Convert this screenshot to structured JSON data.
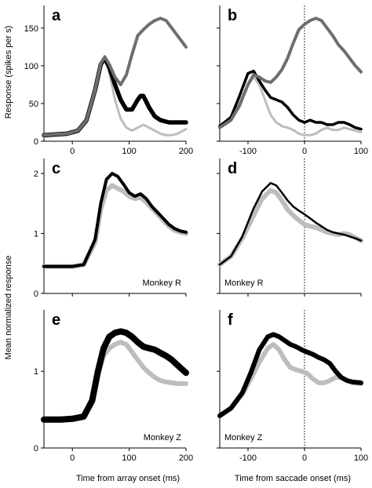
{
  "chart_data": [
    {
      "panel": "a",
      "type": "line",
      "xlim": [
        -50,
        200
      ],
      "ylim": [
        0,
        180
      ],
      "xticks": [
        0,
        100,
        200
      ],
      "xtick_labels": [
        "0",
        "100",
        "200"
      ],
      "yticks": [
        0,
        50,
        100,
        150
      ],
      "ytick_labels": [
        "0",
        "50",
        "100",
        "150"
      ],
      "label": "",
      "series": [
        {
          "color": "#bdbdbd",
          "width": 3,
          "x": [
            -50,
            -30,
            -10,
            10,
            25,
            40,
            50,
            57,
            65,
            75,
            85,
            95,
            105,
            115,
            125,
            135,
            145,
            155,
            165,
            175,
            185,
            200
          ],
          "y": [
            6,
            7,
            8,
            12,
            25,
            65,
            100,
            110,
            90,
            55,
            30,
            18,
            14,
            18,
            22,
            18,
            14,
            10,
            8,
            8,
            10,
            16
          ]
        },
        {
          "color": "#000000",
          "width": 5.5,
          "x": [
            -50,
            -30,
            -10,
            10,
            25,
            40,
            50,
            57,
            65,
            75,
            85,
            95,
            105,
            115,
            120,
            125,
            135,
            145,
            155,
            170,
            185,
            200
          ],
          "y": [
            8,
            9,
            10,
            14,
            28,
            68,
            102,
            110,
            98,
            75,
            55,
            42,
            42,
            55,
            60,
            60,
            45,
            33,
            28,
            25,
            25,
            25
          ]
        },
        {
          "color": "#6e6e6e",
          "width": 4,
          "x": [
            -50,
            -30,
            -10,
            10,
            25,
            40,
            50,
            57,
            65,
            75,
            85,
            95,
            105,
            115,
            125,
            135,
            145,
            155,
            165,
            175,
            185,
            195,
            200
          ],
          "y": [
            8,
            9,
            10,
            14,
            28,
            68,
            103,
            112,
            102,
            85,
            75,
            88,
            115,
            140,
            148,
            155,
            160,
            163,
            160,
            150,
            140,
            130,
            125
          ]
        }
      ]
    },
    {
      "panel": "b",
      "type": "line",
      "xlim": [
        -150,
        100
      ],
      "ylim": [
        0,
        180
      ],
      "xticks": [
        -100,
        0,
        100
      ],
      "xtick_labels": [
        "-100",
        "0",
        "100"
      ],
      "yticks": [
        0,
        50,
        100,
        150
      ],
      "ytick_labels": [],
      "saccade_line_x": 0,
      "label": "",
      "series": [
        {
          "color": "#bdbdbd",
          "width": 3,
          "x": [
            -150,
            -130,
            -115,
            -100,
            -90,
            -80,
            -70,
            -60,
            -50,
            -40,
            -30,
            -20,
            -10,
            0,
            10,
            20,
            30,
            40,
            50,
            60,
            70,
            80,
            90,
            100
          ],
          "y": [
            18,
            28,
            45,
            75,
            85,
            75,
            55,
            35,
            25,
            20,
            18,
            15,
            10,
            8,
            8,
            10,
            15,
            18,
            15,
            15,
            18,
            16,
            14,
            12
          ]
        },
        {
          "color": "#000000",
          "width": 3.5,
          "x": [
            -150,
            -130,
            -115,
            -100,
            -90,
            -80,
            -70,
            -60,
            -50,
            -40,
            -30,
            -20,
            -10,
            0,
            10,
            20,
            30,
            40,
            50,
            60,
            70,
            80,
            90,
            100
          ],
          "y": [
            20,
            32,
            60,
            90,
            93,
            80,
            68,
            58,
            55,
            52,
            45,
            35,
            28,
            25,
            28,
            25,
            25,
            22,
            22,
            25,
            25,
            22,
            18,
            16
          ]
        },
        {
          "color": "#6e6e6e",
          "width": 4,
          "x": [
            -150,
            -130,
            -115,
            -100,
            -90,
            -80,
            -70,
            -60,
            -50,
            -40,
            -30,
            -20,
            -10,
            0,
            10,
            20,
            30,
            40,
            50,
            60,
            70,
            80,
            90,
            100
          ],
          "y": [
            18,
            28,
            48,
            75,
            88,
            85,
            80,
            78,
            85,
            95,
            110,
            130,
            148,
            155,
            160,
            163,
            160,
            150,
            140,
            128,
            120,
            110,
            100,
            92
          ]
        }
      ]
    },
    {
      "panel": "c",
      "type": "line",
      "xlim": [
        -50,
        200
      ],
      "ylim": [
        0,
        2.25
      ],
      "xticks": [
        0,
        100,
        200
      ],
      "xtick_labels": [],
      "yticks": [
        0,
        1,
        2
      ],
      "ytick_labels": [
        "0",
        "1",
        "2"
      ],
      "label": "Monkey R",
      "series": [
        {
          "color": "#bdbdbd",
          "width": 6,
          "x": [
            -50,
            -20,
            0,
            20,
            40,
            50,
            60,
            70,
            80,
            90,
            100,
            110,
            120,
            130,
            140,
            150,
            160,
            170,
            180,
            190,
            200
          ],
          "y": [
            0.45,
            0.45,
            0.45,
            0.48,
            0.85,
            1.4,
            1.72,
            1.8,
            1.75,
            1.7,
            1.62,
            1.58,
            1.6,
            1.52,
            1.42,
            1.32,
            1.22,
            1.12,
            1.05,
            1.02,
            1.0
          ]
        },
        {
          "color": "#000000",
          "width": 4,
          "x": [
            -50,
            -20,
            0,
            20,
            40,
            50,
            60,
            70,
            80,
            90,
            100,
            110,
            120,
            130,
            140,
            150,
            160,
            170,
            180,
            190,
            200
          ],
          "y": [
            0.45,
            0.45,
            0.45,
            0.48,
            0.9,
            1.5,
            1.9,
            2.0,
            1.95,
            1.82,
            1.68,
            1.62,
            1.66,
            1.58,
            1.45,
            1.35,
            1.25,
            1.15,
            1.08,
            1.04,
            1.02
          ]
        }
      ]
    },
    {
      "panel": "d",
      "type": "line",
      "xlim": [
        -150,
        100
      ],
      "ylim": [
        0,
        2.25
      ],
      "xticks": [
        -100,
        0,
        100
      ],
      "xtick_labels": [],
      "yticks": [
        0,
        1,
        2
      ],
      "ytick_labels": [],
      "saccade_line_x": 0,
      "label": "Monkey R",
      "series": [
        {
          "color": "#bdbdbd",
          "width": 6,
          "x": [
            -150,
            -130,
            -110,
            -90,
            -75,
            -60,
            -50,
            -40,
            -30,
            -20,
            -10,
            0,
            10,
            20,
            30,
            40,
            50,
            60,
            70,
            80,
            90,
            100
          ],
          "y": [
            0.48,
            0.62,
            0.92,
            1.3,
            1.58,
            1.72,
            1.68,
            1.55,
            1.4,
            1.3,
            1.22,
            1.15,
            1.12,
            1.1,
            1.06,
            1.02,
            1.0,
            0.98,
            1.0,
            0.98,
            0.93,
            0.88
          ]
        },
        {
          "color": "#000000",
          "width": 2.5,
          "x": [
            -150,
            -130,
            -110,
            -90,
            -75,
            -60,
            -50,
            -40,
            -30,
            -20,
            -10,
            0,
            10,
            20,
            30,
            40,
            50,
            60,
            70,
            80,
            90,
            100
          ],
          "y": [
            0.48,
            0.62,
            0.95,
            1.42,
            1.7,
            1.84,
            1.8,
            1.68,
            1.55,
            1.45,
            1.38,
            1.32,
            1.25,
            1.18,
            1.12,
            1.06,
            1.02,
            1.0,
            0.98,
            0.95,
            0.92,
            0.88
          ]
        }
      ]
    },
    {
      "panel": "e",
      "type": "line",
      "xlim": [
        -50,
        200
      ],
      "ylim": [
        0,
        1.8
      ],
      "xticks": [
        0,
        100,
        200
      ],
      "xtick_labels": [
        "0",
        "100",
        "200"
      ],
      "yticks": [
        0,
        1
      ],
      "ytick_labels": [
        "0",
        "1"
      ],
      "label": "Monkey Z",
      "series": [
        {
          "color": "#bdbdbd",
          "width": 6,
          "x": [
            -50,
            -20,
            0,
            20,
            35,
            45,
            55,
            65,
            75,
            85,
            95,
            105,
            115,
            125,
            135,
            145,
            155,
            165,
            175,
            185,
            200
          ],
          "y": [
            0.36,
            0.36,
            0.37,
            0.4,
            0.6,
            0.95,
            1.2,
            1.3,
            1.35,
            1.38,
            1.35,
            1.25,
            1.15,
            1.05,
            0.98,
            0.92,
            0.88,
            0.86,
            0.85,
            0.84,
            0.84
          ]
        },
        {
          "color": "#000000",
          "width": 8,
          "x": [
            -50,
            -20,
            0,
            20,
            35,
            45,
            55,
            65,
            75,
            85,
            95,
            105,
            115,
            125,
            135,
            145,
            155,
            165,
            175,
            185,
            200
          ],
          "y": [
            0.37,
            0.37,
            0.38,
            0.41,
            0.62,
            1.0,
            1.3,
            1.45,
            1.5,
            1.52,
            1.5,
            1.45,
            1.38,
            1.32,
            1.3,
            1.28,
            1.24,
            1.2,
            1.15,
            1.08,
            0.98
          ]
        }
      ]
    },
    {
      "panel": "f",
      "type": "line",
      "xlim": [
        -150,
        100
      ],
      "ylim": [
        0,
        1.8
      ],
      "xticks": [
        -100,
        0,
        100
      ],
      "xtick_labels": [
        "-100",
        "0",
        "100"
      ],
      "yticks": [
        0,
        1
      ],
      "ytick_labels": [],
      "saccade_line_x": 0,
      "label": "Monkey Z",
      "series": [
        {
          "color": "#bdbdbd",
          "width": 6,
          "x": [
            -150,
            -130,
            -110,
            -95,
            -80,
            -65,
            -55,
            -45,
            -35,
            -25,
            -15,
            -5,
            5,
            15,
            25,
            35,
            45,
            55,
            65,
            75,
            85,
            100
          ],
          "y": [
            0.42,
            0.52,
            0.7,
            0.9,
            1.12,
            1.3,
            1.35,
            1.28,
            1.15,
            1.05,
            1.02,
            1.0,
            0.97,
            0.9,
            0.85,
            0.85,
            0.88,
            0.92,
            0.92,
            0.88,
            0.85,
            0.84
          ]
        },
        {
          "color": "#000000",
          "width": 6,
          "x": [
            -150,
            -130,
            -110,
            -95,
            -80,
            -65,
            -55,
            -45,
            -35,
            -25,
            -15,
            -5,
            5,
            15,
            25,
            35,
            45,
            55,
            65,
            75,
            85,
            100
          ],
          "y": [
            0.42,
            0.52,
            0.72,
            0.98,
            1.28,
            1.45,
            1.48,
            1.45,
            1.4,
            1.35,
            1.32,
            1.28,
            1.25,
            1.22,
            1.18,
            1.15,
            1.1,
            1.0,
            0.92,
            0.88,
            0.86,
            0.85
          ]
        }
      ]
    }
  ],
  "labels": {
    "ylabel_top": "Response (spikes per s)",
    "ylabel_bottom": "Mean normalized response",
    "xlabel_left": "Time from array onset (ms)",
    "xlabel_right": "Time from saccade onset (ms)"
  }
}
